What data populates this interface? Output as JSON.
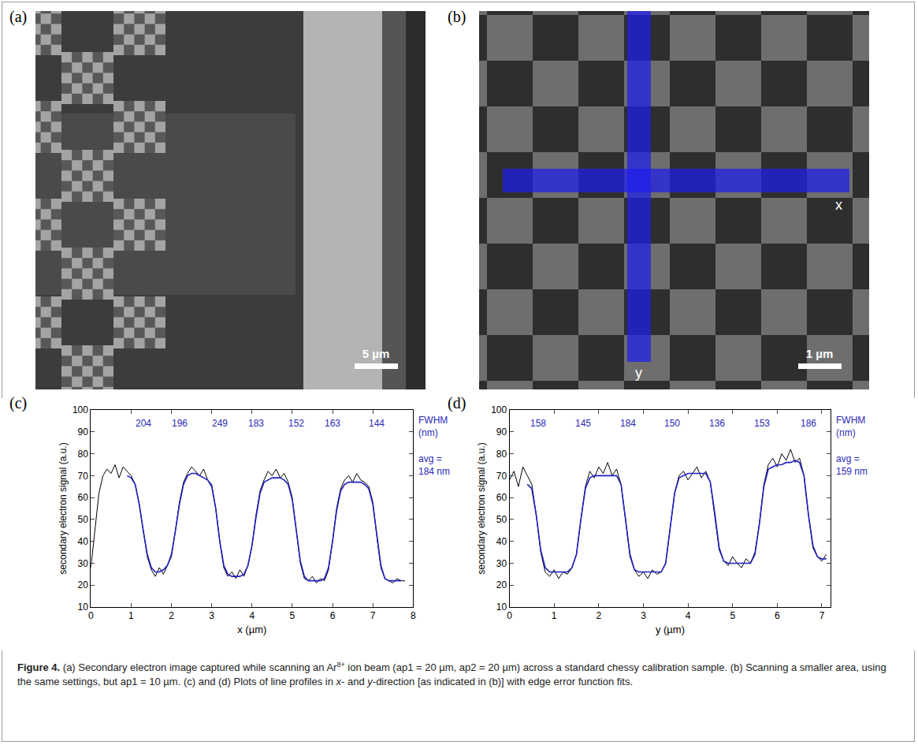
{
  "images": [
    {
      "label": "(a)",
      "scale_bar": "5 µm"
    },
    {
      "label": "(b)",
      "scale_bar": "1 µm",
      "line_labels": [
        "x",
        "y"
      ]
    }
  ],
  "chart_data": [
    {
      "type": "line",
      "panel": "(c)",
      "xlabel": "x (µm)",
      "ylabel": "secondary electron signal (a.u.)",
      "xlim": [
        0,
        8
      ],
      "xticks": [
        0,
        1,
        2,
        3,
        4,
        5,
        6,
        7,
        8
      ],
      "ylim": [
        10,
        100
      ],
      "yticks": [
        10,
        20,
        30,
        40,
        50,
        60,
        70,
        80,
        90,
        100
      ],
      "grid": false,
      "series": [
        {
          "color": "#000000",
          "x": [
            0,
            0.1,
            0.2,
            0.3,
            0.4,
            0.5,
            0.6,
            0.7,
            0.8,
            0.9,
            1.0,
            1.1,
            1.2,
            1.3,
            1.4,
            1.5,
            1.6,
            1.7,
            1.8,
            1.9,
            2.0,
            2.1,
            2.2,
            2.3,
            2.4,
            2.5,
            2.6,
            2.7,
            2.8,
            2.9,
            3.0,
            3.1,
            3.2,
            3.3,
            3.4,
            3.5,
            3.6,
            3.7,
            3.8,
            3.9,
            4.0,
            4.1,
            4.2,
            4.3,
            4.4,
            4.5,
            4.6,
            4.7,
            4.8,
            4.9,
            5.0,
            5.1,
            5.2,
            5.3,
            5.4,
            5.5,
            5.6,
            5.7,
            5.8,
            5.9,
            6.0,
            6.1,
            6.2,
            6.3,
            6.4,
            6.5,
            6.6,
            6.7,
            6.8,
            6.9,
            7.0,
            7.1,
            7.2,
            7.3,
            7.4,
            7.5,
            7.6,
            7.7,
            7.8
          ],
          "values": [
            28,
            45,
            62,
            70,
            73,
            71,
            75,
            69,
            74,
            72,
            70,
            66,
            57,
            45,
            33,
            27,
            24,
            28,
            25,
            29,
            33,
            45,
            58,
            67,
            71,
            74,
            72,
            70,
            73,
            68,
            66,
            55,
            40,
            28,
            24,
            26,
            23,
            27,
            24,
            29,
            38,
            52,
            63,
            68,
            72,
            70,
            73,
            69,
            71,
            67,
            60,
            45,
            30,
            23,
            22,
            24,
            21,
            23,
            22,
            27,
            40,
            55,
            64,
            68,
            70,
            67,
            71,
            68,
            67,
            65,
            58,
            42,
            28,
            23,
            22,
            21,
            23,
            22,
            22
          ]
        },
        {
          "color": "#2020c0",
          "x": [
            0,
            0.1,
            0.2,
            0.3,
            0.4,
            0.5,
            0.6,
            0.7,
            0.8,
            0.9,
            1.0,
            1.1,
            1.2,
            1.3,
            1.4,
            1.5,
            1.6,
            1.7,
            1.8,
            1.9,
            2.0,
            2.1,
            2.2,
            2.3,
            2.4,
            2.5,
            2.6,
            2.7,
            2.8,
            2.9,
            3.0,
            3.1,
            3.2,
            3.3,
            3.4,
            3.5,
            3.6,
            3.7,
            3.8,
            3.9,
            4.0,
            4.1,
            4.2,
            4.3,
            4.4,
            4.5,
            4.6,
            4.7,
            4.8,
            4.9,
            5.0,
            5.1,
            5.2,
            5.3,
            5.4,
            5.5,
            5.6,
            5.7,
            5.8,
            5.9,
            6.0,
            6.1,
            6.2,
            6.3,
            6.4,
            6.5,
            6.6,
            6.7,
            6.8,
            6.9,
            7.0,
            7.1,
            7.2,
            7.3,
            7.4,
            7.5,
            7.6,
            7.7,
            7.8
          ],
          "values": [
            null,
            null,
            null,
            null,
            null,
            null,
            null,
            null,
            null,
            70,
            69,
            66,
            57,
            45,
            34,
            28,
            26,
            26,
            27,
            29,
            34,
            45,
            57,
            66,
            70,
            71,
            71,
            70,
            69,
            68,
            65,
            55,
            40,
            29,
            25,
            24,
            24,
            24,
            25,
            29,
            38,
            51,
            62,
            67,
            68,
            69,
            69,
            69,
            68,
            66,
            59,
            45,
            31,
            24,
            22,
            22,
            22,
            22,
            23,
            28,
            40,
            54,
            63,
            66,
            67,
            67,
            67,
            67,
            66,
            64,
            57,
            42,
            29,
            23,
            22,
            22,
            22,
            22,
            null
          ]
        }
      ],
      "fwhm": {
        "title": [
          "FWHM",
          "(nm)"
        ],
        "x": [
          1.3,
          2.2,
          3.2,
          4.1,
          5.1,
          6.0,
          7.1
        ],
        "values": [
          204,
          196,
          249,
          183,
          152,
          163,
          144
        ]
      },
      "average": [
        "avg =",
        "184 nm"
      ]
    },
    {
      "type": "line",
      "panel": "(d)",
      "xlabel": "y (µm)",
      "ylabel": "secondary electron signal (a.u.)",
      "xlim": [
        0,
        7.2
      ],
      "xticks": [
        0,
        1,
        2,
        3,
        4,
        5,
        6,
        7
      ],
      "ylim": [
        10,
        100
      ],
      "yticks": [
        10,
        20,
        30,
        40,
        50,
        60,
        70,
        80,
        90,
        100
      ],
      "grid": false,
      "series": [
        {
          "color": "#000000",
          "x": [
            0,
            0.1,
            0.2,
            0.3,
            0.4,
            0.5,
            0.6,
            0.7,
            0.8,
            0.9,
            1.0,
            1.1,
            1.2,
            1.3,
            1.4,
            1.5,
            1.6,
            1.7,
            1.8,
            1.9,
            2.0,
            2.1,
            2.2,
            2.3,
            2.4,
            2.5,
            2.6,
            2.7,
            2.8,
            2.9,
            3.0,
            3.1,
            3.2,
            3.3,
            3.4,
            3.5,
            3.6,
            3.7,
            3.8,
            3.9,
            4.0,
            4.1,
            4.2,
            4.3,
            4.4,
            4.5,
            4.6,
            4.7,
            4.8,
            4.9,
            5.0,
            5.1,
            5.2,
            5.3,
            5.4,
            5.5,
            5.6,
            5.7,
            5.8,
            5.9,
            6.0,
            6.1,
            6.2,
            6.3,
            6.4,
            6.5,
            6.6,
            6.7,
            6.8,
            6.9,
            7.0,
            7.1
          ],
          "values": [
            68,
            72,
            65,
            74,
            70,
            66,
            52,
            35,
            26,
            24,
            27,
            23,
            26,
            25,
            28,
            34,
            50,
            65,
            72,
            69,
            74,
            71,
            76,
            70,
            73,
            66,
            50,
            33,
            27,
            24,
            26,
            23,
            27,
            25,
            26,
            30,
            46,
            62,
            70,
            72,
            68,
            71,
            74,
            69,
            72,
            67,
            52,
            36,
            31,
            29,
            33,
            30,
            28,
            32,
            30,
            35,
            48,
            66,
            75,
            78,
            74,
            80,
            77,
            82,
            76,
            78,
            70,
            52,
            37,
            33,
            31,
            34
          ]
        },
        {
          "color": "#2020c0",
          "x": [
            0,
            0.1,
            0.2,
            0.3,
            0.4,
            0.5,
            0.6,
            0.7,
            0.8,
            0.9,
            1.0,
            1.1,
            1.2,
            1.3,
            1.4,
            1.5,
            1.6,
            1.7,
            1.8,
            1.9,
            2.0,
            2.1,
            2.2,
            2.3,
            2.4,
            2.5,
            2.6,
            2.7,
            2.8,
            2.9,
            3.0,
            3.1,
            3.2,
            3.3,
            3.4,
            3.5,
            3.6,
            3.7,
            3.8,
            3.9,
            4.0,
            4.1,
            4.2,
            4.3,
            4.4,
            4.5,
            4.6,
            4.7,
            4.8,
            4.9,
            5.0,
            5.1,
            5.2,
            5.3,
            5.4,
            5.5,
            5.6,
            5.7,
            5.8,
            5.9,
            6.0,
            6.1,
            6.2,
            6.3,
            6.4,
            6.5,
            6.6,
            6.7,
            6.8,
            6.9,
            7.0,
            7.1
          ],
          "values": [
            null,
            null,
            null,
            null,
            66,
            64,
            52,
            36,
            28,
            26,
            26,
            26,
            26,
            26,
            28,
            34,
            50,
            64,
            69,
            70,
            70,
            70,
            70,
            70,
            70,
            66,
            51,
            34,
            27,
            26,
            26,
            26,
            26,
            26,
            26,
            30,
            46,
            62,
            69,
            70,
            71,
            71,
            71,
            71,
            71,
            67,
            53,
            37,
            31,
            30,
            30,
            30,
            30,
            30,
            30,
            34,
            48,
            65,
            73,
            74,
            75,
            75,
            76,
            76,
            77,
            76,
            70,
            52,
            38,
            33,
            32,
            32
          ]
        }
      ],
      "fwhm": {
        "title": [
          "FWHM",
          "(nm)"
        ],
        "x": [
          0.65,
          1.65,
          2.65,
          3.65,
          4.65,
          5.65,
          6.7
        ],
        "values": [
          158,
          145,
          184,
          150,
          136,
          153,
          186
        ]
      },
      "average": [
        "avg =",
        "159 nm"
      ]
    }
  ],
  "caption": [
    {
      "text": "Figure 4.",
      "style": "bold"
    },
    {
      "text": "  (a) Secondary electron image captured while scanning an Ar",
      "style": "normal"
    },
    {
      "text": "8+",
      "style": "sup"
    },
    {
      "text": " ion beam (ap1 = 20 µm, ap2 = 20 µm) across a standard chessy calibration sample. (b) Scanning a smaller area, using the same settings, but ap1 = 10 µm. (c) and (d) Plots of line profiles in ",
      "style": "normal"
    },
    {
      "text": "x",
      "style": "italic"
    },
    {
      "text": "- and ",
      "style": "normal"
    },
    {
      "text": "y",
      "style": "italic"
    },
    {
      "text": "-direction [as indicated in (b)] with edge error function fits.",
      "style": "normal"
    }
  ]
}
